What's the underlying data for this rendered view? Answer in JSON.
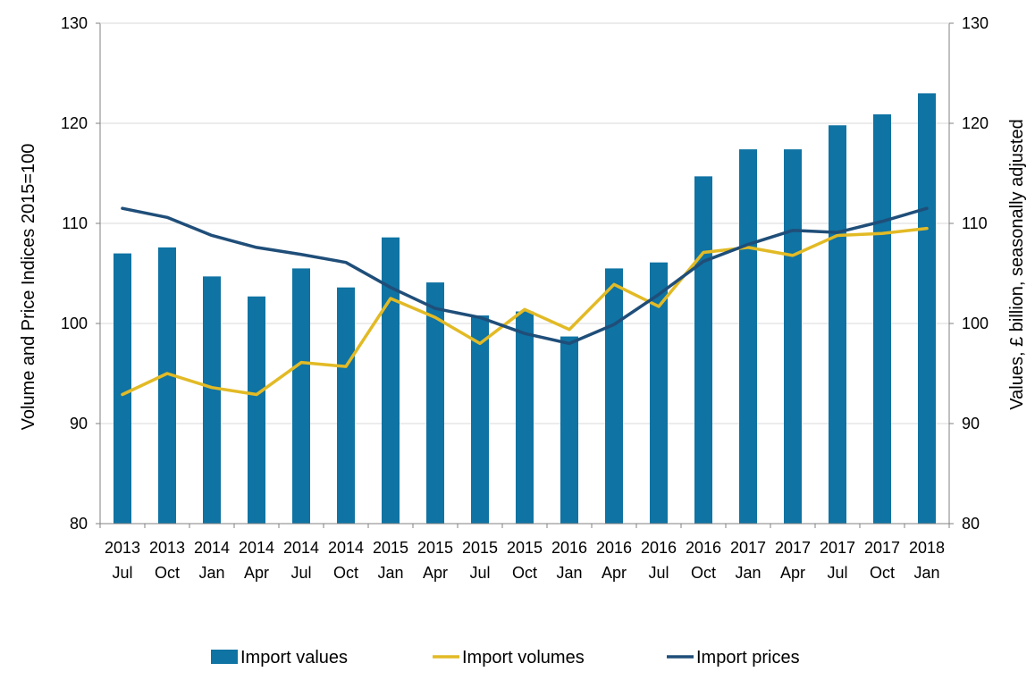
{
  "chart_data": {
    "type": "bar",
    "categories": [
      [
        "2013",
        "Jul"
      ],
      [
        "2013",
        "Oct"
      ],
      [
        "2014",
        "Jan"
      ],
      [
        "2014",
        "Apr"
      ],
      [
        "2014",
        "Jul"
      ],
      [
        "2014",
        "Oct"
      ],
      [
        "2015",
        "Jan"
      ],
      [
        "2015",
        "Apr"
      ],
      [
        "2015",
        "Jul"
      ],
      [
        "2015",
        "Oct"
      ],
      [
        "2016",
        "Jan"
      ],
      [
        "2016",
        "Apr"
      ],
      [
        "2016",
        "Jul"
      ],
      [
        "2016",
        "Oct"
      ],
      [
        "2017",
        "Jan"
      ],
      [
        "2017",
        "Apr"
      ],
      [
        "2017",
        "Jul"
      ],
      [
        "2017",
        "Oct"
      ],
      [
        "2018",
        "Jan"
      ]
    ],
    "series": [
      {
        "name": "Import values",
        "kind": "bar",
        "axis": "right",
        "color": "#0f73a3",
        "values": [
          107.0,
          107.6,
          104.7,
          102.7,
          105.5,
          103.6,
          108.6,
          104.1,
          100.8,
          101.2,
          98.7,
          105.5,
          106.1,
          114.7,
          117.4,
          117.4,
          119.8,
          120.9,
          123.0
        ]
      },
      {
        "name": "Import volumes",
        "kind": "line",
        "axis": "left",
        "color": "#e2ba25",
        "values": [
          92.9,
          95.0,
          93.6,
          92.9,
          96.1,
          95.7,
          102.5,
          100.6,
          98.0,
          101.4,
          99.4,
          103.9,
          101.7,
          107.1,
          107.6,
          106.8,
          108.8,
          109.0,
          109.5
        ]
      },
      {
        "name": "Import prices",
        "kind": "line",
        "axis": "left",
        "color": "#1f4e79",
        "values": [
          111.5,
          110.6,
          108.8,
          107.6,
          106.9,
          106.1,
          103.6,
          101.5,
          100.6,
          99.0,
          98.0,
          99.9,
          102.9,
          106.2,
          107.9,
          109.3,
          109.1,
          110.2,
          111.5
        ]
      }
    ],
    "y_left": {
      "label": "Volume and Price Indices 2015=100",
      "min": 80,
      "max": 130,
      "ticks": [
        80,
        90,
        100,
        110,
        120,
        130
      ]
    },
    "y_right": {
      "label": "Values, £ billion, seasonally adjusted",
      "min": 80,
      "max": 130,
      "ticks": [
        80,
        90,
        100,
        110,
        120,
        130
      ]
    },
    "grid": "horizontal",
    "legend": "bottom",
    "title": "",
    "xlabel": ""
  }
}
